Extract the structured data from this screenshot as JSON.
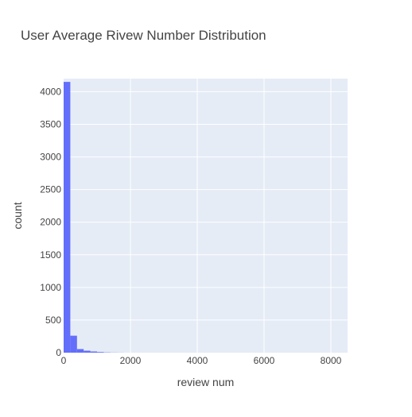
{
  "chart_data": {
    "type": "bar",
    "title": "User Average Rivew Number Distribution",
    "xlabel": "review num",
    "ylabel": "count",
    "xlim": [
      0,
      8500
    ],
    "ylim": [
      0,
      4200
    ],
    "xticks": [
      0,
      2000,
      4000,
      6000,
      8000
    ],
    "yticks": [
      0,
      500,
      1000,
      1500,
      2000,
      2500,
      3000,
      3500,
      4000
    ],
    "grid": true,
    "legend": "none",
    "bin_width": 200,
    "bins": [
      {
        "x0": 0,
        "x1": 200,
        "count": 4150
      },
      {
        "x0": 200,
        "x1": 400,
        "count": 260
      },
      {
        "x0": 400,
        "x1": 600,
        "count": 55
      },
      {
        "x0": 600,
        "x1": 800,
        "count": 30
      },
      {
        "x0": 800,
        "x1": 1000,
        "count": 18
      },
      {
        "x0": 1000,
        "x1": 1200,
        "count": 10
      },
      {
        "x0": 1200,
        "x1": 1400,
        "count": 4
      },
      {
        "x0": 1400,
        "x1": 1600,
        "count": 2
      },
      {
        "x0": 1600,
        "x1": 1800,
        "count": 1
      }
    ],
    "colors": {
      "bar": "#636efa",
      "plot_bg": "#e5ecf6",
      "grid": "#ffffff",
      "text": "#444444"
    }
  }
}
